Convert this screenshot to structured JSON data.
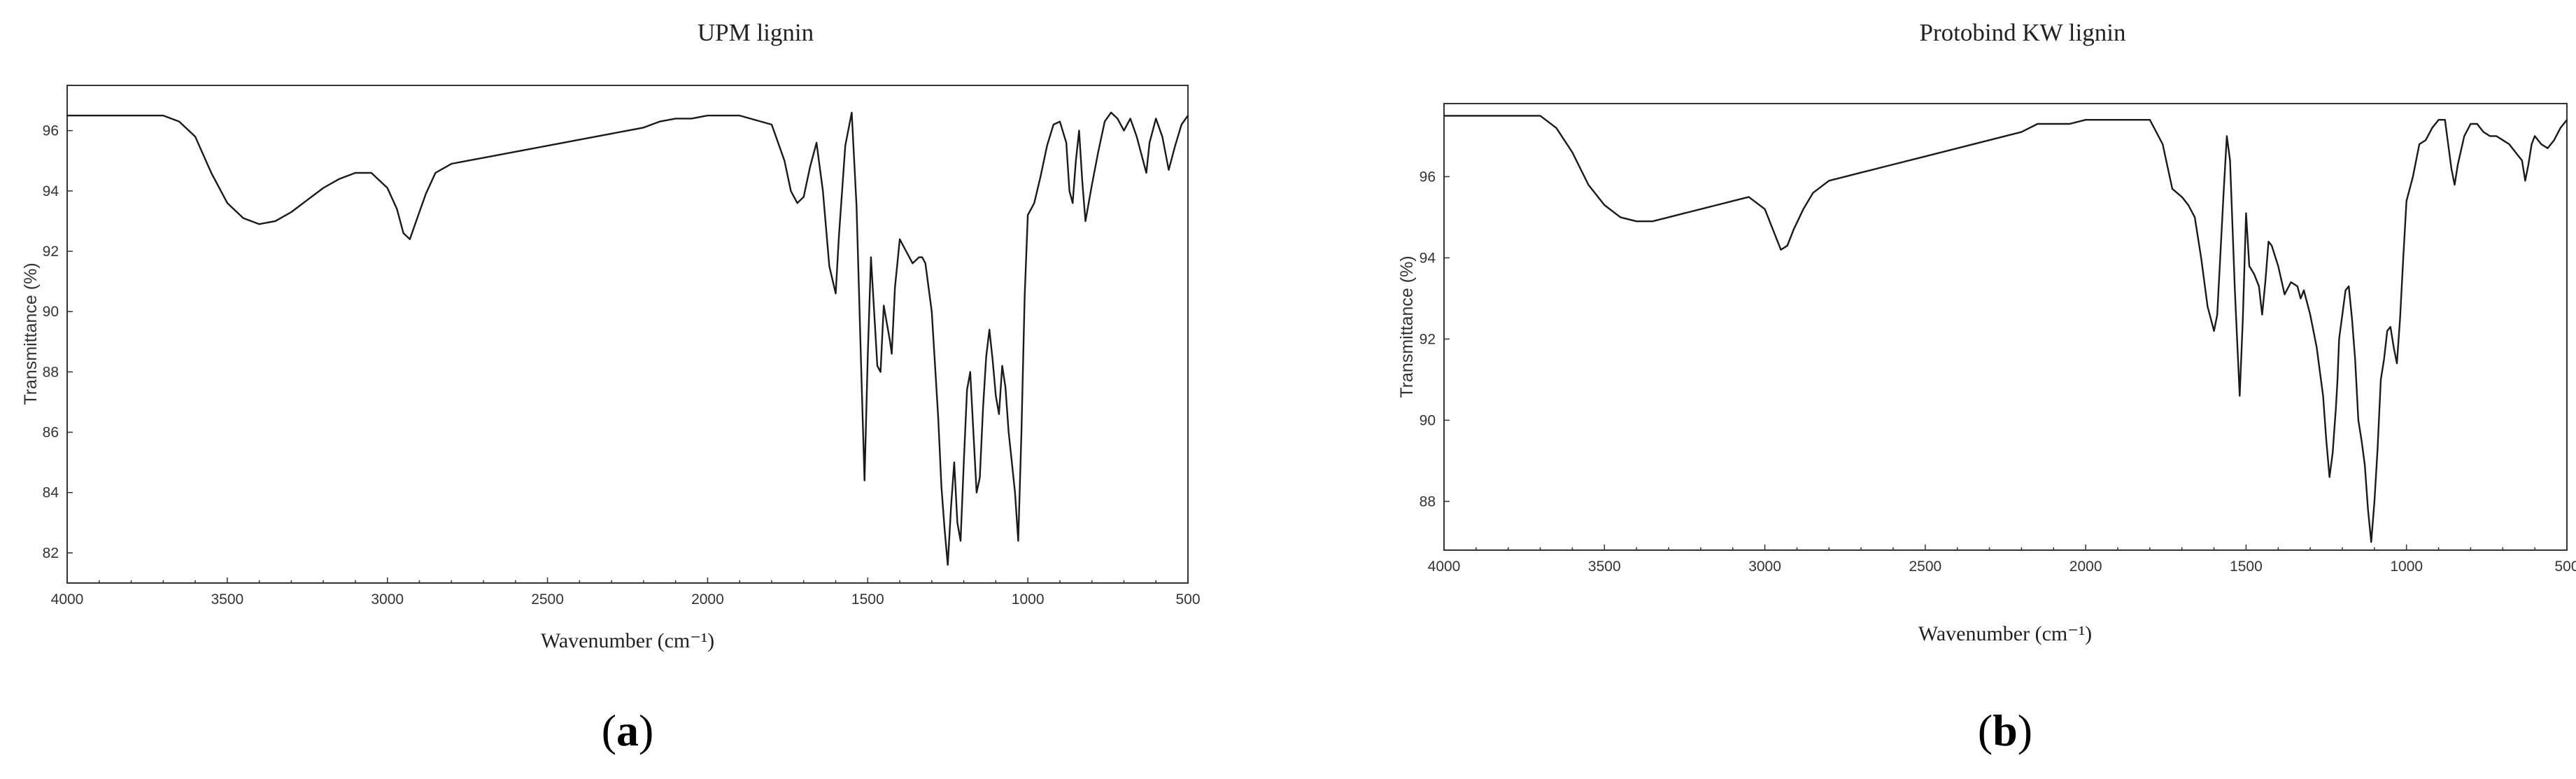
{
  "chart_data": [
    {
      "type": "line",
      "panel": "(a)",
      "title": "UPM lignin",
      "xlabel": "Wavenumber (cm⁻¹)",
      "ylabel": "Transmittance (%)",
      "xlim": [
        4000,
        500
      ],
      "ylim": [
        81,
        97.5
      ],
      "x_reversed": true,
      "xticks": [
        4000,
        3500,
        3000,
        2500,
        2000,
        1500,
        1000,
        500
      ],
      "yticks": [
        82,
        84,
        86,
        88,
        90,
        92,
        94,
        96
      ],
      "grid": false,
      "series": [
        {
          "x": [
            4000,
            3700,
            3650,
            3600,
            3550,
            3500,
            3450,
            3400,
            3350,
            3300,
            3250,
            3200,
            3150,
            3100,
            3050,
            3000,
            2970,
            2950,
            2930,
            2910,
            2880,
            2850,
            2800,
            2750,
            2700,
            2600,
            2500,
            2400,
            2300,
            2200,
            2150,
            2100,
            2050,
            2000,
            1900,
            1800,
            1760,
            1740,
            1720,
            1700,
            1680,
            1660,
            1640,
            1620,
            1600,
            1590,
            1570,
            1550,
            1535,
            1520,
            1510,
            1500,
            1490,
            1470,
            1460,
            1450,
            1440,
            1430,
            1425,
            1415,
            1400,
            1380,
            1360,
            1340,
            1330,
            1320,
            1300,
            1280,
            1270,
            1260,
            1250,
            1240,
            1230,
            1220,
            1210,
            1200,
            1190,
            1180,
            1170,
            1160,
            1150,
            1140,
            1130,
            1120,
            1110,
            1100,
            1090,
            1080,
            1070,
            1060,
            1050,
            1040,
            1030,
            1020,
            1010,
            1000,
            980,
            960,
            940,
            920,
            900,
            880,
            870,
            860,
            850,
            840,
            830,
            820,
            800,
            780,
            760,
            740,
            720,
            700,
            680,
            660,
            640,
            630,
            620,
            600,
            580,
            560,
            540,
            520,
            500
          ],
          "y": [
            96.5,
            96.5,
            96.3,
            95.8,
            94.6,
            93.6,
            93.1,
            92.9,
            93.0,
            93.3,
            93.7,
            94.1,
            94.4,
            94.6,
            94.6,
            94.1,
            93.4,
            92.6,
            92.4,
            93.0,
            93.9,
            94.6,
            94.9,
            95.0,
            95.1,
            95.3,
            95.5,
            95.7,
            95.9,
            96.1,
            96.3,
            96.4,
            96.4,
            96.5,
            96.5,
            96.2,
            95.0,
            94.0,
            93.6,
            93.8,
            94.8,
            95.6,
            94.0,
            91.5,
            90.6,
            92.5,
            95.5,
            96.6,
            93.5,
            88.0,
            84.4,
            88.5,
            91.8,
            88.2,
            88.0,
            90.2,
            89.6,
            89.0,
            88.6,
            90.8,
            92.4,
            92.0,
            91.6,
            91.8,
            91.8,
            91.6,
            90.0,
            86.5,
            84.2,
            82.8,
            81.6,
            83.5,
            85.0,
            83.0,
            82.4,
            85.0,
            87.4,
            88.0,
            86.0,
            84.0,
            84.5,
            86.8,
            88.5,
            89.4,
            88.4,
            87.2,
            86.6,
            88.2,
            87.5,
            86.0,
            85.0,
            84.0,
            82.4,
            86.0,
            90.5,
            93.2,
            93.6,
            94.5,
            95.5,
            96.2,
            96.3,
            95.6,
            94.0,
            93.6,
            95.0,
            96.0,
            94.3,
            93.0,
            94.2,
            95.3,
            96.3,
            96.6,
            96.4,
            96.0,
            96.4,
            95.8,
            95.0,
            94.6,
            95.6,
            96.4,
            95.8,
            94.7,
            95.5,
            96.2,
            96.5
          ]
        }
      ]
    },
    {
      "type": "line",
      "panel": "(b)",
      "title": "Protobind KW lignin",
      "xlabel": "Wavenumber (cm⁻¹)",
      "ylabel": "Transmittance (%)",
      "xlim": [
        4000,
        500
      ],
      "ylim": [
        86.8,
        97.8
      ],
      "x_reversed": true,
      "xticks": [
        4000,
        3500,
        3000,
        2500,
        2000,
        1500,
        1000,
        500
      ],
      "yticks": [
        88,
        90,
        92,
        94,
        96
      ],
      "grid": false,
      "series": [
        {
          "x": [
            4000,
            3700,
            3650,
            3600,
            3550,
            3500,
            3450,
            3400,
            3350,
            3300,
            3250,
            3200,
            3150,
            3100,
            3050,
            3000,
            2970,
            2950,
            2930,
            2910,
            2880,
            2850,
            2800,
            2750,
            2700,
            2600,
            2500,
            2400,
            2300,
            2200,
            2150,
            2100,
            2050,
            2000,
            1900,
            1800,
            1760,
            1730,
            1700,
            1680,
            1660,
            1640,
            1620,
            1600,
            1590,
            1570,
            1560,
            1550,
            1535,
            1520,
            1510,
            1500,
            1490,
            1475,
            1460,
            1450,
            1440,
            1430,
            1420,
            1400,
            1380,
            1360,
            1340,
            1330,
            1320,
            1300,
            1280,
            1260,
            1250,
            1240,
            1230,
            1220,
            1215,
            1210,
            1200,
            1190,
            1180,
            1170,
            1160,
            1150,
            1140,
            1130,
            1120,
            1110,
            1100,
            1090,
            1080,
            1070,
            1060,
            1050,
            1040,
            1030,
            1020,
            1010,
            1000,
            980,
            960,
            940,
            920,
            900,
            880,
            870,
            860,
            850,
            840,
            820,
            800,
            780,
            760,
            740,
            720,
            700,
            680,
            660,
            640,
            630,
            620,
            610,
            600,
            580,
            560,
            540,
            520,
            500
          ],
          "y": [
            97.5,
            97.5,
            97.2,
            96.6,
            95.8,
            95.3,
            95.0,
            94.9,
            94.9,
            95.0,
            95.1,
            95.2,
            95.3,
            95.4,
            95.5,
            95.2,
            94.6,
            94.2,
            94.3,
            94.7,
            95.2,
            95.6,
            95.9,
            96.0,
            96.1,
            96.3,
            96.5,
            96.7,
            96.9,
            97.1,
            97.3,
            97.3,
            97.3,
            97.4,
            97.4,
            97.4,
            96.8,
            95.7,
            95.5,
            95.3,
            95.0,
            94.0,
            92.8,
            92.2,
            92.6,
            95.6,
            97.0,
            96.4,
            93.2,
            90.6,
            92.5,
            95.1,
            93.8,
            93.6,
            93.3,
            92.6,
            93.4,
            94.4,
            94.3,
            93.8,
            93.1,
            93.4,
            93.3,
            93.0,
            93.2,
            92.6,
            91.8,
            90.6,
            89.5,
            88.6,
            89.2,
            90.3,
            91.0,
            92.0,
            92.6,
            93.2,
            93.3,
            92.5,
            91.5,
            90.0,
            89.5,
            88.9,
            87.8,
            87.0,
            88.0,
            89.3,
            91.0,
            91.5,
            92.2,
            92.3,
            91.8,
            91.4,
            92.5,
            94.0,
            95.4,
            96.0,
            96.8,
            96.9,
            97.2,
            97.4,
            97.4,
            96.8,
            96.2,
            95.8,
            96.3,
            97.0,
            97.3,
            97.3,
            97.1,
            97.0,
            97.0,
            96.9,
            96.8,
            96.6,
            96.4,
            95.9,
            96.3,
            96.8,
            97.0,
            96.8,
            96.7,
            96.9,
            97.2,
            97.4
          ]
        }
      ]
    }
  ]
}
